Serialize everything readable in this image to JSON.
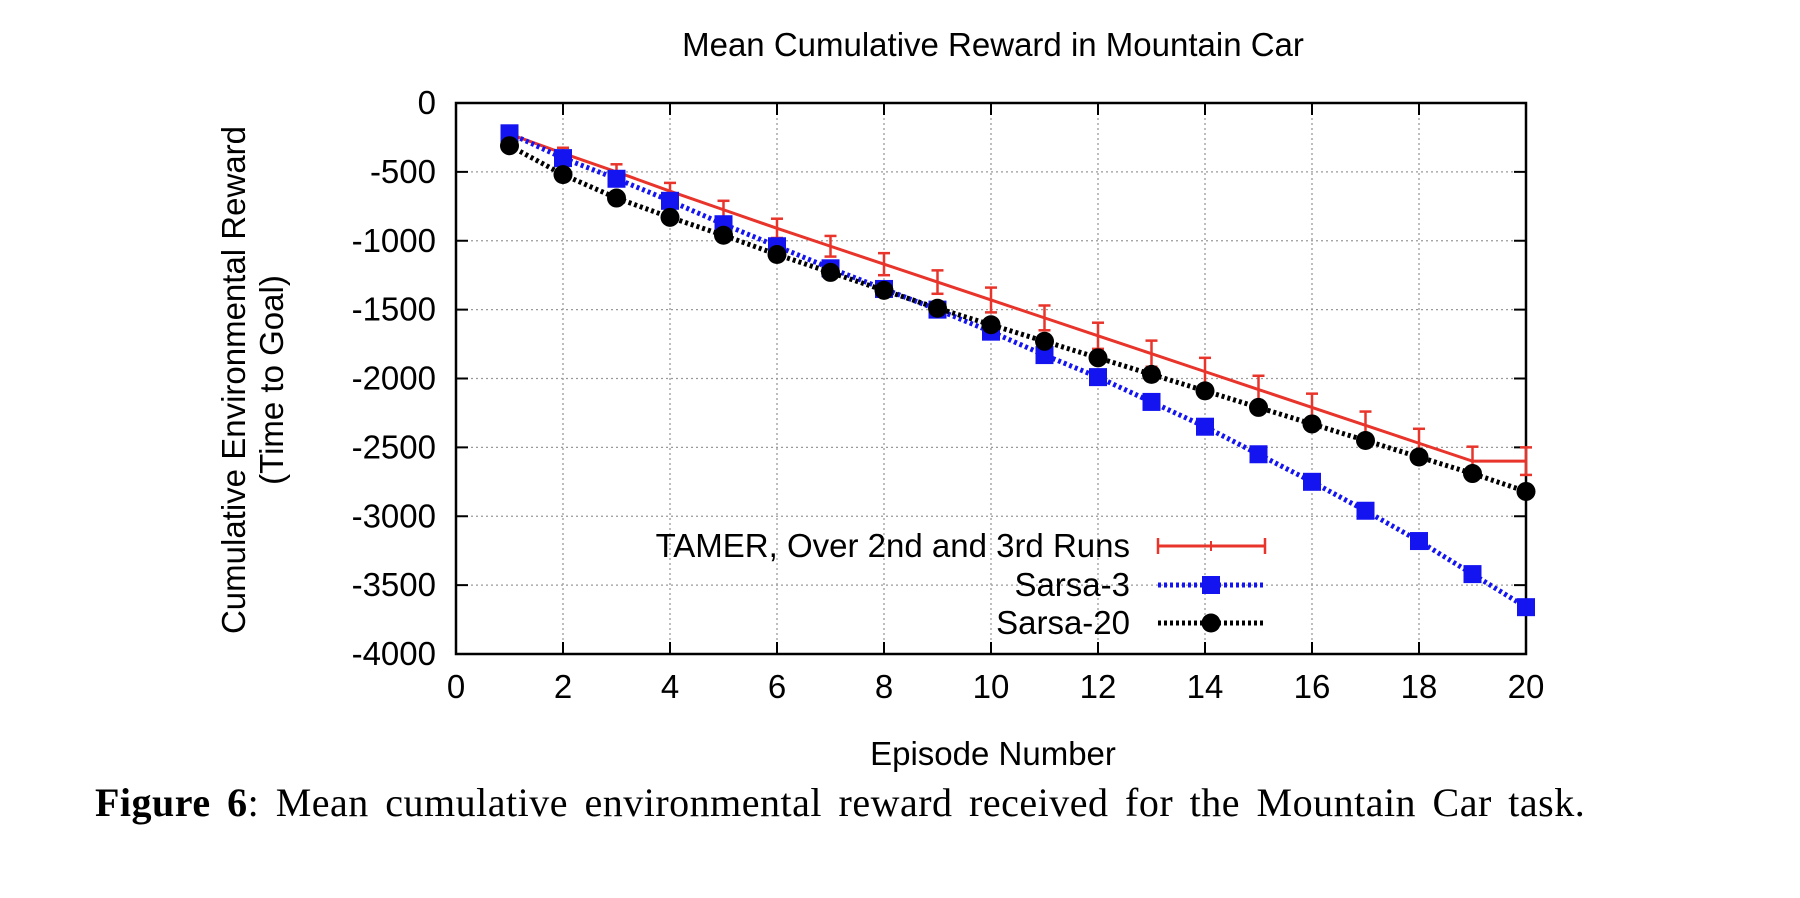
{
  "chart_data": {
    "type": "line",
    "title": "Mean Cumulative Reward in Mountain Car",
    "xlabel": "Episode Number",
    "ylabel_lines": [
      "Cumulative Environmental Reward",
      "(Time to Goal)"
    ],
    "xlim": [
      0,
      20
    ],
    "ylim": [
      -4000,
      0
    ],
    "x_ticks": [
      0,
      2,
      4,
      6,
      8,
      10,
      12,
      14,
      16,
      18,
      20
    ],
    "y_ticks": [
      0,
      -500,
      -1000,
      -1500,
      -2000,
      -2500,
      -3000,
      -3500,
      -4000
    ],
    "x_tick_labels": [
      "0",
      "2",
      "4",
      "6",
      "8",
      "10",
      "12",
      "14",
      "16",
      "18",
      "20"
    ],
    "y_tick_labels": [
      "0",
      "-500",
      "-1000",
      "-1500",
      "-2000",
      "-2500",
      "-3000",
      "-3500",
      "-4000"
    ],
    "grid": true,
    "legend_position": "bottom-left",
    "x": [
      1,
      2,
      3,
      4,
      5,
      6,
      7,
      8,
      9,
      10,
      11,
      12,
      13,
      14,
      15,
      16,
      17,
      18,
      19,
      20
    ],
    "series": [
      {
        "name": "TAMER, Over 2nd and 3rd Runs",
        "color": "#e8342a",
        "style": "solid",
        "marker": "errorbar",
        "values": [
          -225,
          -365,
          -500,
          -640,
          -775,
          -910,
          -1040,
          -1170,
          -1300,
          -1430,
          -1560,
          -1690,
          -1820,
          -1950,
          -2080,
          -2210,
          -2340,
          -2470,
          -2600,
          -2600
        ],
        "error": [
          30,
          40,
          55,
          60,
          65,
          70,
          75,
          80,
          85,
          90,
          90,
          95,
          95,
          100,
          100,
          100,
          100,
          105,
          105,
          100
        ]
      },
      {
        "name": "Sarsa-3",
        "color": "#1414f0",
        "style": "dotted",
        "marker": "square",
        "values": [
          -220,
          -400,
          -550,
          -710,
          -880,
          -1040,
          -1200,
          -1350,
          -1500,
          -1660,
          -1830,
          -1990,
          -2170,
          -2350,
          -2550,
          -2750,
          -2960,
          -3180,
          -3420,
          -3660
        ]
      },
      {
        "name": "Sarsa-20",
        "color": "#000000",
        "style": "dotted",
        "marker": "circle",
        "values": [
          -310,
          -520,
          -690,
          -830,
          -960,
          -1100,
          -1230,
          -1360,
          -1490,
          -1610,
          -1730,
          -1850,
          -1970,
          -2090,
          -2210,
          -2330,
          -2450,
          -2570,
          -2690,
          -2820
        ]
      }
    ]
  },
  "caption": {
    "label": "Figure 6",
    "text": ":  Mean cumulative environmental reward received for the Mountain Car task."
  }
}
